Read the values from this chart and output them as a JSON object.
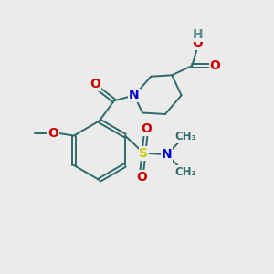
{
  "bg_color": "#ebebeb",
  "bond_color": "#2d6b6b",
  "atom_colors": {
    "O": "#cc0000",
    "N": "#0000cc",
    "S": "#cccc00",
    "H": "#5a8a8a",
    "C": "#2d6b6b"
  },
  "font_size_atom": 10,
  "font_size_label": 8.5
}
